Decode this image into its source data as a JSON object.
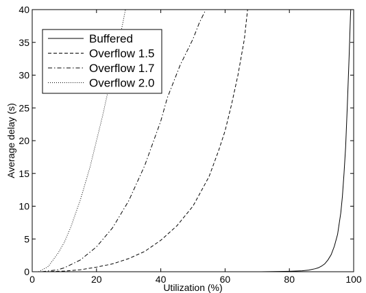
{
  "chart_data": {
    "type": "line",
    "title": "",
    "xlabel": "Utilization (%)",
    "ylabel": "Average delay (s)",
    "xlim": [
      0,
      100
    ],
    "ylim": [
      0,
      40
    ],
    "xticks": [
      0,
      20,
      40,
      60,
      80,
      100
    ],
    "yticks": [
      0,
      5,
      10,
      15,
      20,
      25,
      30,
      35,
      40
    ],
    "xtick_labels": [
      "0",
      "20",
      "40",
      "60",
      "80",
      "100"
    ],
    "ytick_labels": [
      "0",
      "5",
      "10",
      "15",
      "20",
      "25",
      "30",
      "35",
      "40"
    ],
    "grid": false,
    "legend_position": "top-left",
    "series": [
      {
        "name": "Buffered",
        "style": "solid",
        "x": [
          0,
          40,
          60,
          70,
          75,
          80,
          82,
          84,
          86,
          88,
          89,
          90,
          91,
          92,
          93,
          94,
          95,
          96,
          96.5,
          97,
          97.5,
          98,
          98.3,
          98.6,
          98.8,
          99,
          99.1
        ],
        "y": [
          0,
          0,
          0,
          0,
          0.02,
          0.07,
          0.1,
          0.15,
          0.25,
          0.45,
          0.6,
          0.85,
          1.2,
          1.8,
          2.6,
          3.9,
          5.7,
          9,
          11.5,
          15,
          19,
          25,
          29,
          33,
          36,
          39,
          40
        ]
      },
      {
        "name": "Overflow 1.5",
        "style": "dashed",
        "x": [
          4,
          10,
          15,
          20,
          25,
          30,
          35,
          40,
          45,
          50,
          55,
          58,
          60,
          62,
          64,
          66,
          67
        ],
        "y": [
          0,
          0.1,
          0.3,
          0.7,
          1.2,
          2,
          3.1,
          4.8,
          7,
          10,
          14.5,
          18.5,
          21.5,
          25.5,
          30,
          35.5,
          40
        ]
      },
      {
        "name": "Overflow 1.7",
        "style": "dashdot",
        "x": [
          3,
          8,
          10,
          15,
          20,
          25,
          30,
          35,
          40,
          42,
          44,
          46,
          48,
          50,
          52,
          54
        ],
        "y": [
          0,
          0.3,
          0.6,
          1.8,
          3.8,
          6.7,
          10.8,
          16.2,
          23,
          26.5,
          29,
          31.5,
          33.5,
          35.5,
          38,
          40
        ]
      },
      {
        "name": "Overflow 2.0",
        "style": "dotted",
        "x": [
          2,
          5,
          8,
          10,
          12,
          15,
          18,
          20,
          22,
          24,
          26,
          28,
          29
        ],
        "y": [
          0,
          0.8,
          2.8,
          4.5,
          6.8,
          11,
          16,
          20,
          24,
          28.5,
          33,
          37.5,
          40
        ]
      }
    ]
  }
}
